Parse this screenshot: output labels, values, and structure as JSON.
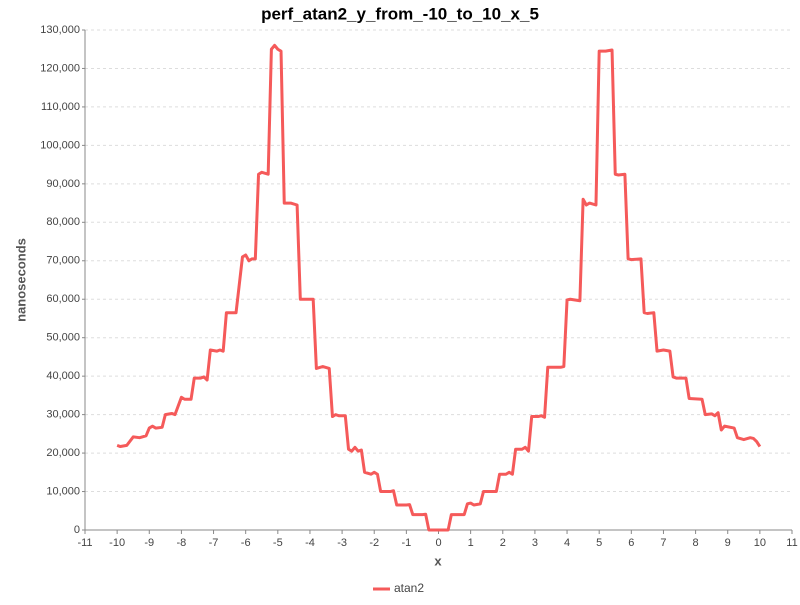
{
  "chart_data": {
    "type": "line",
    "title": "perf_atan2_y_from_-10_to_10_x_5",
    "x_label": "x",
    "y_label": "nanoseconds",
    "xlim": [
      -11,
      11
    ],
    "xticks": [
      -11,
      -10,
      -9,
      -8,
      -7,
      -6,
      -5,
      -4,
      -3,
      -2,
      -1,
      0,
      1,
      2,
      3,
      4,
      5,
      6,
      7,
      8,
      9,
      10,
      11
    ],
    "ylim": [
      0,
      130000
    ],
    "yticks": [
      0,
      {
        "value": 10000,
        "label": "10,000"
      },
      {
        "value": 20000,
        "label": "20,000"
      },
      {
        "value": 30000,
        "label": "30,000"
      },
      {
        "value": 40000,
        "label": "40,000"
      },
      {
        "value": 50000,
        "label": "50,000"
      },
      {
        "value": 60000,
        "label": "60,000"
      },
      {
        "value": 70000,
        "label": "70,000"
      },
      {
        "value": 80000,
        "label": "80,000"
      },
      {
        "value": 90000,
        "label": "90,000"
      },
      {
        "value": 100000,
        "label": "100,000"
      },
      {
        "value": 110000,
        "label": "110,000"
      },
      {
        "value": 120000,
        "label": "120,000"
      },
      {
        "value": 130000,
        "label": "130,000"
      }
    ],
    "grid": true,
    "legend": "bottom",
    "x": [
      -10,
      -9.9,
      -9.7,
      -9.5,
      -9.3,
      -9.1,
      -9.0,
      -8.9,
      -8.8,
      -8.6,
      -8.5,
      -8.3,
      -8.2,
      -8.0,
      -7.9,
      -7.7,
      -7.6,
      -7.4,
      -7.3,
      -7.2,
      -7.1,
      -6.9,
      -6.8,
      -6.7,
      -6.6,
      -6.3,
      -6.1,
      -6.0,
      -5.9,
      -5.8,
      -5.7,
      -5.6,
      -5.5,
      -5.3,
      -5.2,
      -5.1,
      -5.0,
      -4.9,
      -4.8,
      -4.6,
      -4.4,
      -4.3,
      -4.1,
      -3.9,
      -3.8,
      -3.6,
      -3.4,
      -3.3,
      -3.2,
      -3.1,
      -2.9,
      -2.8,
      -2.7,
      -2.6,
      -2.5,
      -2.4,
      -2.3,
      -2.1,
      -2.0,
      -1.9,
      -1.8,
      -1.5,
      -1.4,
      -1.3,
      -1.0,
      -0.9,
      -0.8,
      -0.5,
      -0.4,
      -0.3,
      0.3,
      0.4,
      0.8,
      0.9,
      1.0,
      1.1,
      1.3,
      1.4,
      1.8,
      1.9,
      2.1,
      2.2,
      2.3,
      2.4,
      2.6,
      2.7,
      2.8,
      2.9,
      3.1,
      3.2,
      3.3,
      3.4,
      3.8,
      3.9,
      4.0,
      4.1,
      4.4,
      4.5,
      4.6,
      4.7,
      4.9,
      5.0,
      5.2,
      5.4,
      5.5,
      5.6,
      5.8,
      5.9,
      6.0,
      6.3,
      6.4,
      6.5,
      6.7,
      6.8,
      7.0,
      7.2,
      7.3,
      7.4,
      7.7,
      7.8,
      8.2,
      8.3,
      8.5,
      8.6,
      8.7,
      8.8,
      8.9,
      9.2,
      9.3,
      9.5,
      9.7,
      9.8,
      9.9,
      10.0
    ],
    "series": [
      {
        "name": "atan2",
        "color": "#f55a5a",
        "values": [
          22000,
          21700,
          22000,
          24200,
          24000,
          24500,
          26500,
          27000,
          26500,
          26700,
          30000,
          30300,
          30000,
          34500,
          34000,
          34000,
          39500,
          39500,
          39800,
          39000,
          46800,
          46500,
          46800,
          46500,
          56500,
          56500,
          71000,
          71500,
          70000,
          70500,
          70500,
          92500,
          93000,
          92500,
          125000,
          126000,
          125000,
          124500,
          85000,
          85000,
          84500,
          60000,
          60000,
          60000,
          42000,
          42500,
          42000,
          29500,
          30000,
          29700,
          29700,
          21000,
          20500,
          21500,
          20500,
          20800,
          15000,
          14500,
          15000,
          14500,
          10000,
          10000,
          10200,
          6500,
          6500,
          6600,
          4000,
          4000,
          4100,
          0,
          0,
          4000,
          4000,
          6800,
          7000,
          6500,
          6800,
          10000,
          10000,
          14500,
          14500,
          15000,
          14500,
          21000,
          21000,
          21500,
          20500,
          29500,
          29500,
          29700,
          29300,
          42300,
          42300,
          42500,
          59800,
          60000,
          59600,
          86000,
          84500,
          85000,
          84500,
          124500,
          124500,
          124800,
          92500,
          92300,
          92500,
          70500,
          70300,
          70500,
          56500,
          56300,
          56500,
          46500,
          46800,
          46500,
          39800,
          39500,
          39500,
          34200,
          34000,
          30000,
          30200,
          29700,
          30500,
          26000,
          27000,
          26500,
          24000,
          23500,
          24000,
          23800,
          23000,
          21700
        ]
      }
    ]
  }
}
